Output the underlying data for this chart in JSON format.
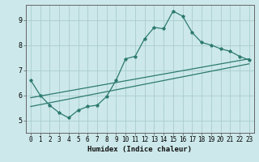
{
  "title": "",
  "xlabel": "Humidex (Indice chaleur)",
  "background_color": "#cce8ea",
  "grid_color": "#aacccc",
  "line_color": "#2d7a70",
  "xlim": [
    -0.5,
    23.5
  ],
  "ylim": [
    4.5,
    9.6
  ],
  "xticks": [
    0,
    1,
    2,
    3,
    4,
    5,
    6,
    7,
    8,
    9,
    10,
    11,
    12,
    13,
    14,
    15,
    16,
    17,
    18,
    19,
    20,
    21,
    22,
    23
  ],
  "yticks": [
    5,
    6,
    7,
    8,
    9
  ],
  "line1_x": [
    0,
    1,
    2,
    3,
    4,
    5,
    6,
    7,
    8,
    9,
    10,
    11,
    12,
    13,
    14,
    15,
    16,
    17,
    18,
    19,
    20,
    21,
    22,
    23
  ],
  "line1_y": [
    6.6,
    6.0,
    5.6,
    5.3,
    5.1,
    5.4,
    5.55,
    5.6,
    5.95,
    6.6,
    7.45,
    7.55,
    8.25,
    8.7,
    8.65,
    9.35,
    9.15,
    8.5,
    8.1,
    8.0,
    7.85,
    7.75,
    7.55,
    7.4
  ],
  "line2_x": [
    0,
    23
  ],
  "line2_y": [
    5.9,
    7.45
  ],
  "line3_x": [
    0,
    23
  ],
  "line3_y": [
    5.55,
    7.25
  ]
}
